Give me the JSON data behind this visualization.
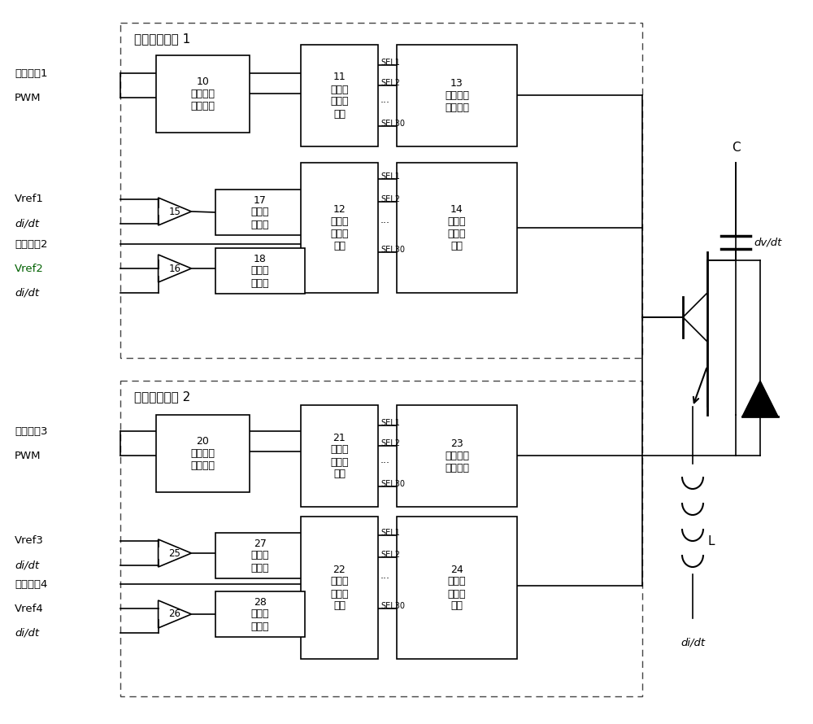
{
  "bg_color": "#ffffff",
  "lc": "#000000",
  "fig_width": 10.0,
  "fig_height": 8.9,
  "module1_label": "正向开启模块 1",
  "module2_label": "反向关断模块 2",
  "box10_label": "10\n第一电平\n位移电路",
  "box11_label": "11\n第一逻\n辑控制\n电路",
  "box12_label": "12\n第二逻\n辑控制\n电路",
  "box13_label": "13\n第一电流\n驱动电路",
  "box14_label": "14\n第二电\n流驱动\n电路",
  "box17_label": "17\n第一延\n时电路",
  "box18_label": "18\n第二延\n时电路",
  "box20_label": "20\n第二电平\n位移电路",
  "box21_label": "21\n第三逻\n辑控制\n电路",
  "box22_label": "22\n第四逻\n辑控制\n电路",
  "box23_label": "23\n第三电流\n驱动电路",
  "box24_label": "24\n第四电\n流驱动\n电路",
  "box27_label": "27\n第三延\n时电路",
  "box28_label": "28\n第四延\n时电路",
  "in1_labels": [
    "控制信号1",
    "PWM"
  ],
  "in2_labels": [
    "Vref1",
    "di/dt",
    "控制信号2",
    "Vref2",
    "di/dt"
  ],
  "in3_labels": [
    "控制信号3",
    "PWM"
  ],
  "in4_labels": [
    "Vref3",
    "di/dt",
    "控制信号4",
    "Vref4",
    "di/dt"
  ]
}
